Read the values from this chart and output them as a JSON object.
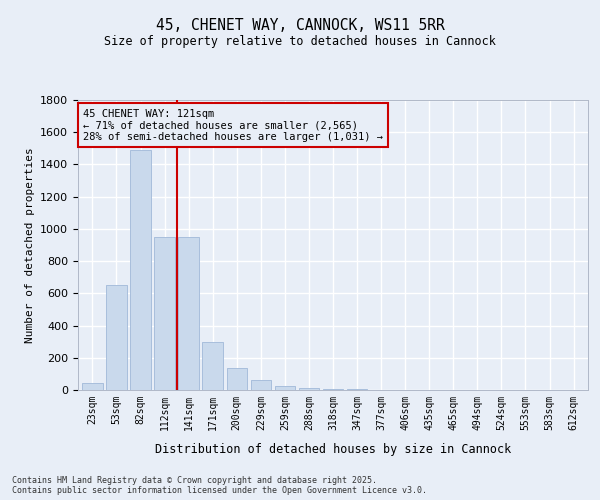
{
  "title": "45, CHENET WAY, CANNOCK, WS11 5RR",
  "subtitle": "Size of property relative to detached houses in Cannock",
  "xlabel": "Distribution of detached houses by size in Cannock",
  "ylabel": "Number of detached properties",
  "categories": [
    "23sqm",
    "53sqm",
    "82sqm",
    "112sqm",
    "141sqm",
    "171sqm",
    "200sqm",
    "229sqm",
    "259sqm",
    "288sqm",
    "318sqm",
    "347sqm",
    "377sqm",
    "406sqm",
    "435sqm",
    "465sqm",
    "494sqm",
    "524sqm",
    "553sqm",
    "583sqm",
    "612sqm"
  ],
  "values": [
    45,
    650,
    1490,
    950,
    950,
    300,
    135,
    65,
    22,
    15,
    8,
    5,
    3,
    2,
    1,
    1,
    1,
    0,
    0,
    0,
    0
  ],
  "bar_color": "#c9d9ec",
  "bar_edge_color": "#a0b8d8",
  "vline_x_index": 3,
  "vline_color": "#cc0000",
  "annotation_box_color": "#cc0000",
  "annotation_text_line1": "45 CHENET WAY: 121sqm",
  "annotation_text_line2": "← 71% of detached houses are smaller (2,565)",
  "annotation_text_line3": "28% of semi-detached houses are larger (1,031) →",
  "ylim": [
    0,
    1800
  ],
  "yticks": [
    0,
    200,
    400,
    600,
    800,
    1000,
    1200,
    1400,
    1600,
    1800
  ],
  "background_color": "#e8eef7",
  "grid_color": "#ffffff",
  "footer_line1": "Contains HM Land Registry data © Crown copyright and database right 2025.",
  "footer_line2": "Contains public sector information licensed under the Open Government Licence v3.0."
}
